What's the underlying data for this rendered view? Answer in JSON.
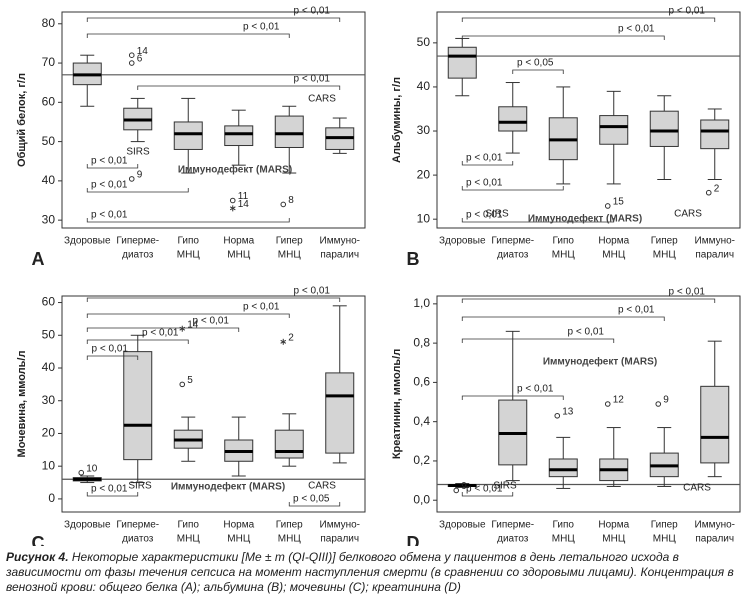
{
  "chart_data": [
    {
      "type": "box",
      "panel": "A",
      "y_label": "Общий белок, г/л",
      "categories": [
        [
          "Здоровые"
        ],
        [
          "Гиперме-",
          "диатоз"
        ],
        [
          "Гипо",
          "МНЦ"
        ],
        [
          "Норма",
          "МНЦ"
        ],
        [
          "Гипер",
          "МНЦ"
        ],
        [
          "Иммуно-",
          "паралич"
        ]
      ],
      "ylim": [
        28,
        83
      ],
      "yticks": [
        30,
        40,
        50,
        60,
        70,
        80
      ],
      "reference_line": 67,
      "boxes": [
        {
          "low": 59,
          "q1": 64.5,
          "median": 67,
          "q3": 70,
          "high": 72,
          "outliers": []
        },
        {
          "low": 50,
          "q1": 53,
          "median": 55.5,
          "q3": 58.5,
          "high": 61,
          "outliers": [
            {
              "value": 72,
              "label": "14",
              "marker": "o"
            },
            {
              "value": 70,
              "label": "6",
              "marker": "o"
            },
            {
              "value": 40.5,
              "label": "9",
              "marker": "o"
            }
          ]
        },
        {
          "low": 42,
          "q1": 48,
          "median": 52,
          "q3": 55,
          "high": 61,
          "outliers": []
        },
        {
          "low": 44,
          "q1": 49,
          "median": 52,
          "q3": 54,
          "high": 58,
          "outliers": [
            {
              "value": 35,
              "label": "11",
              "marker": "o"
            },
            {
              "value": 33,
              "label": "14",
              "marker": "*"
            }
          ]
        },
        {
          "low": 42,
          "q1": 48.5,
          "median": 52,
          "q3": 56.5,
          "high": 59,
          "outliers": [
            {
              "value": 34,
              "label": "8",
              "marker": "o"
            }
          ]
        },
        {
          "low": 47,
          "q1": 48,
          "median": 51,
          "q3": 53.5,
          "high": 56,
          "outliers": []
        }
      ],
      "brackets_top": [
        {
          "from": 0,
          "to": 5,
          "label": "p < 0,01"
        },
        {
          "from": 0,
          "to": 4,
          "label": "p < 0,01"
        },
        {
          "from": 1,
          "to": 5,
          "label": "p < 0,01"
        }
      ],
      "brackets_bottom": [
        {
          "from": 0,
          "to": 1,
          "label": "p < 0,01"
        },
        {
          "from": 0,
          "to": 2,
          "label": "p < 0,01"
        },
        {
          "from": 0,
          "to": 4,
          "label": "p < 0,01"
        }
      ],
      "annotations": [
        "SIRS",
        "Иммунодефект (MARS)",
        "CARS"
      ]
    },
    {
      "type": "box",
      "panel": "B",
      "y_label": "Альбумины, г/л",
      "categories": [
        [
          "Здоровые"
        ],
        [
          "Гиперме-",
          "диатоз"
        ],
        [
          "Гипо",
          "МНЦ"
        ],
        [
          "Норма",
          "МНЦ"
        ],
        [
          "Гипер",
          "МНЦ"
        ],
        [
          "Иммуно-",
          "паралич"
        ]
      ],
      "ylim": [
        8,
        57
      ],
      "yticks": [
        10,
        20,
        30,
        40,
        50
      ],
      "reference_line": 47,
      "boxes": [
        {
          "low": 38,
          "q1": 42,
          "median": 47,
          "q3": 49,
          "high": 51,
          "outliers": []
        },
        {
          "low": 25,
          "q1": 30,
          "median": 32,
          "q3": 35.5,
          "high": 41,
          "outliers": []
        },
        {
          "low": 18,
          "q1": 23.5,
          "median": 28,
          "q3": 33,
          "high": 40,
          "outliers": []
        },
        {
          "low": 18,
          "q1": 27,
          "median": 31,
          "q3": 33.5,
          "high": 39,
          "outliers": [
            {
              "value": 13,
              "label": "15",
              "marker": "o"
            }
          ]
        },
        {
          "low": 19,
          "q1": 26.5,
          "median": 30,
          "q3": 34.5,
          "high": 38,
          "outliers": []
        },
        {
          "low": 19,
          "q1": 26,
          "median": 30,
          "q3": 32.5,
          "high": 35,
          "outliers": [
            {
              "value": 16,
              "label": "2",
              "marker": "o"
            }
          ]
        }
      ],
      "brackets_top": [
        {
          "from": 0,
          "to": 5,
          "label": "p < 0,01"
        },
        {
          "from": 0,
          "to": 4,
          "label": "p < 0,01"
        },
        {
          "from": 1,
          "to": 2,
          "label": "p < 0,05"
        }
      ],
      "brackets_bottom": [
        {
          "from": 0,
          "to": 1,
          "label": "p < 0,01"
        },
        {
          "from": 0,
          "to": 2,
          "label": "p < 0,01"
        },
        {
          "from": 0,
          "to": 3,
          "label": "p < 0,01"
        }
      ],
      "annotations": [
        "SIRS",
        "Иммунодефект (MARS)",
        "CARS"
      ]
    },
    {
      "type": "box",
      "panel": "C",
      "y_label": "Мочевина, ммоль/л",
      "categories": [
        [
          "Здоровые"
        ],
        [
          "Гиперме-",
          "диатоз"
        ],
        [
          "Гипо",
          "МНЦ"
        ],
        [
          "Норма",
          "МНЦ"
        ],
        [
          "Гипер",
          "МНЦ"
        ],
        [
          "Иммуно-",
          "паралич"
        ]
      ],
      "ylim": [
        -4,
        62
      ],
      "yticks": [
        0,
        10,
        20,
        30,
        40,
        50,
        60
      ],
      "reference_line": 6,
      "boxes": [
        {
          "low": 5,
          "q1": 5.5,
          "median": 6,
          "q3": 6.5,
          "high": 7,
          "outliers": [
            {
              "value": 8,
              "label": "10",
              "marker": "o"
            }
          ]
        },
        {
          "low": 5,
          "q1": 12,
          "median": 22.5,
          "q3": 45,
          "high": 50,
          "outliers": []
        },
        {
          "low": 11.5,
          "q1": 15.5,
          "median": 18,
          "q3": 21,
          "high": 25,
          "outliers": [
            {
              "value": 35,
              "label": "5",
              "marker": "o"
            },
            {
              "value": 52,
              "label": "14",
              "marker": "*"
            }
          ]
        },
        {
          "low": 7,
          "q1": 11.5,
          "median": 14.5,
          "q3": 18,
          "high": 25,
          "outliers": []
        },
        {
          "low": 10,
          "q1": 12.5,
          "median": 14.5,
          "q3": 21,
          "high": 26,
          "outliers": [
            {
              "value": 48,
              "label": "2",
              "marker": "*"
            }
          ]
        },
        {
          "low": 11,
          "q1": 14,
          "median": 31.5,
          "q3": 38.5,
          "high": 59,
          "outliers": []
        }
      ],
      "brackets_top": [
        {
          "from": 0,
          "to": 5,
          "label": "p < 0,01"
        },
        {
          "from": 0,
          "to": 4,
          "label": "p < 0,01"
        },
        {
          "from": 0,
          "to": 3,
          "label": "p < 0,01"
        },
        {
          "from": 0,
          "to": 2,
          "label": "p < 0,01"
        },
        {
          "from": 0,
          "to": 1,
          "label": "p < 0,01"
        }
      ],
      "brackets_bottom": [
        {
          "from": 0,
          "to": 1,
          "label": "p < 0,01"
        },
        {
          "from": 4,
          "to": 5,
          "label": "p < 0,05"
        }
      ],
      "annotations": [
        "SIRS",
        "Иммунодефект (MARS)",
        "CARS"
      ]
    },
    {
      "type": "box",
      "panel": "D",
      "y_label": "Креатинин, ммоль/л",
      "categories": [
        [
          "Здоровые"
        ],
        [
          "Гиперме-",
          "диатоз"
        ],
        [
          "Гипо",
          "МНЦ"
        ],
        [
          "Норма",
          "МНЦ"
        ],
        [
          "Гипер",
          "МНЦ"
        ],
        [
          "Иммуно-",
          "паралич"
        ]
      ],
      "ylim": [
        -0.06,
        1.04
      ],
      "yticks": [
        {
          "value": 0,
          "label": "0,0"
        },
        {
          "value": 0.2,
          "label": "0,2"
        },
        {
          "value": 0.4,
          "label": "0,4"
        },
        {
          "value": 0.6,
          "label": "0,6"
        },
        {
          "value": 0.8,
          "label": "0,8"
        },
        {
          "value": 1,
          "label": "1,0"
        }
      ],
      "reference_line": 0.08,
      "boxes": [
        {
          "low": 0.065,
          "q1": 0.07,
          "median": 0.075,
          "q3": 0.08,
          "high": 0.085,
          "outliers": [
            {
              "value": 0.05,
              "label": "9",
              "marker": "o"
            }
          ]
        },
        {
          "low": 0.1,
          "q1": 0.18,
          "median": 0.34,
          "q3": 0.51,
          "high": 0.86,
          "outliers": []
        },
        {
          "low": 0.06,
          "q1": 0.12,
          "median": 0.155,
          "q3": 0.21,
          "high": 0.32,
          "outliers": [
            {
              "value": 0.43,
              "label": "13",
              "marker": "o"
            }
          ]
        },
        {
          "low": 0.07,
          "q1": 0.1,
          "median": 0.155,
          "q3": 0.21,
          "high": 0.37,
          "outliers": [
            {
              "value": 0.49,
              "label": "12",
              "marker": "o"
            }
          ]
        },
        {
          "low": 0.07,
          "q1": 0.12,
          "median": 0.175,
          "q3": 0.24,
          "high": 0.37,
          "outliers": [
            {
              "value": 0.49,
              "label": "9",
              "marker": "o"
            }
          ]
        },
        {
          "low": 0.12,
          "q1": 0.19,
          "median": 0.32,
          "q3": 0.58,
          "high": 0.81,
          "outliers": []
        }
      ],
      "brackets_top": [
        {
          "from": 0,
          "to": 5,
          "label": "p < 0,01"
        },
        {
          "from": 0,
          "to": 4,
          "label": "p < 0,01"
        },
        {
          "from": 0,
          "to": 3,
          "label": "p < 0,01"
        },
        {
          "from": 0,
          "to": 2,
          "label": "p < 0,01"
        }
      ],
      "brackets_bottom": [
        {
          "from": 0,
          "to": 1,
          "label": "p < 0,01"
        }
      ],
      "annotations": [
        "SIRS",
        "Иммунодефект (MARS)",
        "CARS"
      ]
    }
  ],
  "caption": {
    "label": "Рисунок 4.",
    "text": "Некоторые характеристики [Me ± m (QI-QIII)] белкового обмена у пациентов в день летального исхода в зависимости от фазы течения сепсиса на момент наступления смерти (в сравнении со здоровыми лицами). Концентрация в венозной крови: общего белка (A); альбумина (B); мочевины (C); креатинина (D)"
  }
}
